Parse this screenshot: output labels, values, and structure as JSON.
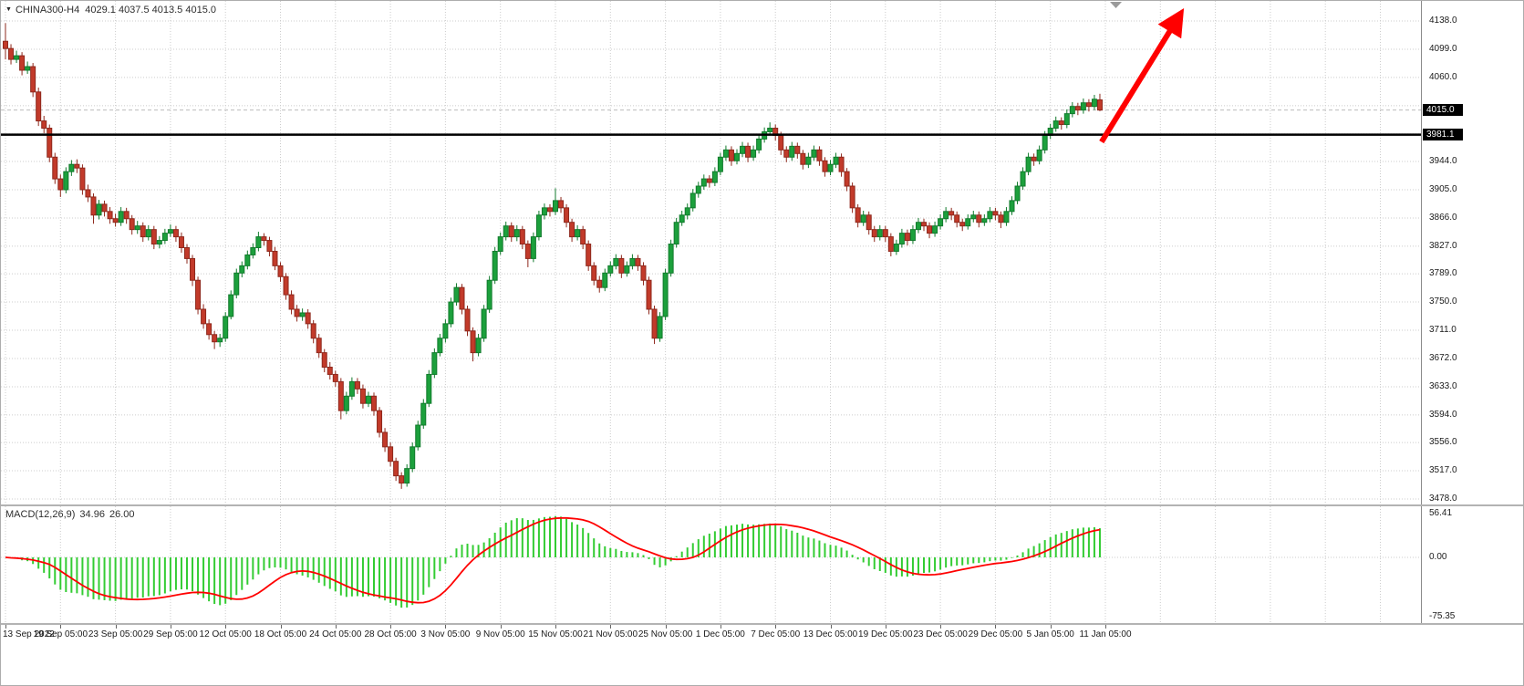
{
  "header": {
    "symbol_title": "CHINA300-H4",
    "ohlc": "4029.1 4037.5 4013.5 4015.0"
  },
  "icons": {
    "symbol_dropdown": "▼"
  },
  "colors": {
    "background": "#ffffff",
    "grid": "#cccccc",
    "up": "#1ca03c",
    "up_border": "#117a2c",
    "down": "#c23a2a",
    "down_border": "#8e281c",
    "histogram": "#33cc33",
    "signal": "#ff0000",
    "hline": "#000000",
    "bid_line": "#bdbdbd",
    "badge_bg": "#000000",
    "badge_text": "#ffffff",
    "arrow": "#ff0000",
    "axis_text": "#1a1a1a"
  },
  "chart_data": {
    "type": "candlestick",
    "title": "CHINA300-H4",
    "symbol": "CHINA300",
    "timeframe": "H4",
    "last_quote": {
      "open": 4029.1,
      "high": 4037.5,
      "low": 4013.5,
      "close": 4015.0
    },
    "price_axis": {
      "grid_values": [
        4138,
        4099,
        4060,
        4021,
        3982,
        3944,
        3905,
        3866,
        3827,
        3789,
        3750,
        3711,
        3672,
        3633,
        3594,
        3556,
        3517,
        3478
      ],
      "labels": [
        "4138.0",
        "4099.0",
        "4060.0",
        "3944.0",
        "3905.0",
        "3866.0",
        "3827.0",
        "3789.0",
        "3750.0",
        "3711.0",
        "3672.0",
        "3633.0",
        "3594.0",
        "3556.0",
        "3517.0",
        "3478.0"
      ],
      "current_badge": "4015.0",
      "current_price_value": 4015.0,
      "line_badge": "3981.1"
    },
    "time_axis": {
      "labels": [
        {
          "bar": 0,
          "text": "13 Sep 2022"
        },
        {
          "bar": 10,
          "text": "19 Sep 05:00"
        },
        {
          "bar": 20,
          "text": "23 Sep 05:00"
        },
        {
          "bar": 30,
          "text": "29 Sep 05:00"
        },
        {
          "bar": 40,
          "text": "12 Oct 05:00"
        },
        {
          "bar": 50,
          "text": "18 Oct 05:00"
        },
        {
          "bar": 60,
          "text": "24 Oct 05:00"
        },
        {
          "bar": 70,
          "text": "28 Oct 05:00"
        },
        {
          "bar": 80,
          "text": "3 Nov 05:00"
        },
        {
          "bar": 90,
          "text": "9 Nov 05:00"
        },
        {
          "bar": 100,
          "text": "15 Nov 05:00"
        },
        {
          "bar": 110,
          "text": "21 Nov 05:00"
        },
        {
          "bar": 120,
          "text": "25 Nov 05:00"
        },
        {
          "bar": 130,
          "text": "1 Dec 05:00"
        },
        {
          "bar": 140,
          "text": "7 Dec 05:00"
        },
        {
          "bar": 150,
          "text": "13 Dec 05:00"
        },
        {
          "bar": 160,
          "text": "19 Dec 05:00"
        },
        {
          "bar": 170,
          "text": "23 Dec 05:00"
        },
        {
          "bar": 180,
          "text": "29 Dec 05:00"
        },
        {
          "bar": 190,
          "text": "5 Jan 05:00"
        },
        {
          "bar": 200,
          "text": "11 Jan 05:00"
        }
      ]
    },
    "candles": [
      [
        4110,
        4135,
        4085,
        4100
      ],
      [
        4100,
        4106,
        4078,
        4085
      ],
      [
        4085,
        4097,
        4080,
        4090
      ],
      [
        4090,
        4095,
        4063,
        4070
      ],
      [
        4070,
        4082,
        4065,
        4075
      ],
      [
        4075,
        4080,
        4033,
        4040
      ],
      [
        4040,
        4046,
        3993,
        4000
      ],
      [
        4000,
        4007,
        3983,
        3990
      ],
      [
        3990,
        3995,
        3943,
        3950
      ],
      [
        3950,
        3956,
        3913,
        3920
      ],
      [
        3920,
        3926,
        3895,
        3905
      ],
      [
        3905,
        3936,
        3900,
        3930
      ],
      [
        3930,
        3946,
        3924,
        3940
      ],
      [
        3940,
        3947,
        3928,
        3935
      ],
      [
        3935,
        3940,
        3898,
        3905
      ],
      [
        3905,
        3912,
        3888,
        3895
      ],
      [
        3895,
        3900,
        3858,
        3870
      ],
      [
        3870,
        3891,
        3864,
        3885
      ],
      [
        3885,
        3890,
        3868,
        3875
      ],
      [
        3875,
        3881,
        3858,
        3865
      ],
      [
        3865,
        3872,
        3854,
        3860
      ],
      [
        3860,
        3881,
        3855,
        3875
      ],
      [
        3875,
        3880,
        3858,
        3865
      ],
      [
        3865,
        3870,
        3843,
        3850
      ],
      [
        3850,
        3862,
        3844,
        3855
      ],
      [
        3855,
        3860,
        3833,
        3840
      ],
      [
        3840,
        3856,
        3835,
        3850
      ],
      [
        3850,
        3855,
        3823,
        3830
      ],
      [
        3830,
        3841,
        3824,
        3835
      ],
      [
        3835,
        3851,
        3830,
        3845
      ],
      [
        3845,
        3857,
        3840,
        3850
      ],
      [
        3850,
        3855,
        3833,
        3840
      ],
      [
        3840,
        3846,
        3818,
        3825
      ],
      [
        3825,
        3830,
        3803,
        3810
      ],
      [
        3810,
        3815,
        3772,
        3780
      ],
      [
        3780,
        3785,
        3733,
        3740
      ],
      [
        3740,
        3747,
        3713,
        3720
      ],
      [
        3720,
        3726,
        3698,
        3705
      ],
      [
        3705,
        3710,
        3685,
        3695
      ],
      [
        3695,
        3706,
        3688,
        3700
      ],
      [
        3700,
        3736,
        3695,
        3730
      ],
      [
        3730,
        3766,
        3726,
        3760
      ],
      [
        3760,
        3796,
        3755,
        3790
      ],
      [
        3790,
        3806,
        3784,
        3800
      ],
      [
        3800,
        3821,
        3795,
        3815
      ],
      [
        3815,
        3831,
        3810,
        3825
      ],
      [
        3825,
        3847,
        3820,
        3840
      ],
      [
        3840,
        3845,
        3828,
        3835
      ],
      [
        3835,
        3840,
        3813,
        3820
      ],
      [
        3820,
        3826,
        3794,
        3800
      ],
      [
        3800,
        3805,
        3778,
        3785
      ],
      [
        3785,
        3790,
        3753,
        3760
      ],
      [
        3760,
        3766,
        3733,
        3740
      ],
      [
        3740,
        3746,
        3723,
        3730
      ],
      [
        3730,
        3741,
        3724,
        3735
      ],
      [
        3735,
        3740,
        3713,
        3720
      ],
      [
        3720,
        3725,
        3693,
        3700
      ],
      [
        3700,
        3706,
        3673,
        3680
      ],
      [
        3680,
        3685,
        3653,
        3660
      ],
      [
        3660,
        3667,
        3643,
        3650
      ],
      [
        3650,
        3655,
        3633,
        3640
      ],
      [
        3640,
        3645,
        3588,
        3600
      ],
      [
        3600,
        3626,
        3595,
        3620
      ],
      [
        3620,
        3646,
        3615,
        3640
      ],
      [
        3640,
        3645,
        3623,
        3630
      ],
      [
        3630,
        3636,
        3603,
        3610
      ],
      [
        3610,
        3626,
        3605,
        3620
      ],
      [
        3620,
        3625,
        3593,
        3600
      ],
      [
        3600,
        3605,
        3563,
        3570
      ],
      [
        3570,
        3576,
        3543,
        3550
      ],
      [
        3550,
        3556,
        3523,
        3530
      ],
      [
        3530,
        3535,
        3503,
        3510
      ],
      [
        3510,
        3515,
        3492,
        3500
      ],
      [
        3500,
        3526,
        3495,
        3520
      ],
      [
        3520,
        3556,
        3515,
        3550
      ],
      [
        3550,
        3586,
        3545,
        3580
      ],
      [
        3580,
        3616,
        3575,
        3610
      ],
      [
        3610,
        3656,
        3605,
        3650
      ],
      [
        3650,
        3686,
        3645,
        3680
      ],
      [
        3680,
        3706,
        3675,
        3700
      ],
      [
        3700,
        3726,
        3694,
        3720
      ],
      [
        3720,
        3756,
        3715,
        3750
      ],
      [
        3750,
        3776,
        3745,
        3770
      ],
      [
        3770,
        3775,
        3733,
        3740
      ],
      [
        3740,
        3745,
        3703,
        3710
      ],
      [
        3710,
        3715,
        3668,
        3680
      ],
      [
        3680,
        3706,
        3675,
        3700
      ],
      [
        3700,
        3746,
        3695,
        3740
      ],
      [
        3740,
        3786,
        3735,
        3780
      ],
      [
        3780,
        3826,
        3775,
        3820
      ],
      [
        3820,
        3846,
        3815,
        3840
      ],
      [
        3840,
        3861,
        3835,
        3855
      ],
      [
        3855,
        3860,
        3833,
        3840
      ],
      [
        3840,
        3856,
        3834,
        3850
      ],
      [
        3850,
        3855,
        3823,
        3830
      ],
      [
        3830,
        3835,
        3798,
        3810
      ],
      [
        3810,
        3846,
        3805,
        3840
      ],
      [
        3840,
        3876,
        3835,
        3870
      ],
      [
        3870,
        3886,
        3864,
        3880
      ],
      [
        3880,
        3885,
        3868,
        3875
      ],
      [
        3875,
        3907,
        3870,
        3890
      ],
      [
        3890,
        3895,
        3873,
        3880
      ],
      [
        3880,
        3885,
        3853,
        3860
      ],
      [
        3860,
        3865,
        3833,
        3840
      ],
      [
        3840,
        3856,
        3835,
        3850
      ],
      [
        3850,
        3855,
        3823,
        3830
      ],
      [
        3830,
        3835,
        3793,
        3800
      ],
      [
        3800,
        3805,
        3773,
        3780
      ],
      [
        3780,
        3786,
        3763,
        3770
      ],
      [
        3770,
        3796,
        3765,
        3790
      ],
      [
        3790,
        3806,
        3785,
        3800
      ],
      [
        3800,
        3816,
        3795,
        3810
      ],
      [
        3810,
        3815,
        3783,
        3790
      ],
      [
        3790,
        3806,
        3785,
        3800
      ],
      [
        3800,
        3816,
        3795,
        3810
      ],
      [
        3810,
        3815,
        3793,
        3800
      ],
      [
        3800,
        3805,
        3773,
        3780
      ],
      [
        3780,
        3785,
        3733,
        3740
      ],
      [
        3740,
        3745,
        3692,
        3700
      ],
      [
        3700,
        3736,
        3695,
        3730
      ],
      [
        3730,
        3796,
        3725,
        3790
      ],
      [
        3790,
        3836,
        3785,
        3830
      ],
      [
        3830,
        3866,
        3825,
        3860
      ],
      [
        3860,
        3876,
        3855,
        3870
      ],
      [
        3870,
        3886,
        3864,
        3880
      ],
      [
        3880,
        3906,
        3875,
        3900
      ],
      [
        3900,
        3916,
        3894,
        3910
      ],
      [
        3910,
        3926,
        3905,
        3920
      ],
      [
        3920,
        3925,
        3908,
        3915
      ],
      [
        3915,
        3936,
        3910,
        3930
      ],
      [
        3930,
        3956,
        3925,
        3950
      ],
      [
        3950,
        3966,
        3945,
        3960
      ],
      [
        3960,
        3965,
        3938,
        3945
      ],
      [
        3945,
        3961,
        3940,
        3955
      ],
      [
        3955,
        3971,
        3950,
        3965
      ],
      [
        3965,
        3970,
        3943,
        3950
      ],
      [
        3950,
        3966,
        3945,
        3960
      ],
      [
        3960,
        3981,
        3955,
        3975
      ],
      [
        3975,
        3991,
        3970,
        3985
      ],
      [
        3985,
        3998,
        3980,
        3990
      ],
      [
        3990,
        3995,
        3973,
        3980
      ],
      [
        3980,
        3985,
        3953,
        3960
      ],
      [
        3960,
        3965,
        3943,
        3950
      ],
      [
        3950,
        3971,
        3945,
        3965
      ],
      [
        3965,
        3970,
        3948,
        3955
      ],
      [
        3955,
        3960,
        3933,
        3940
      ],
      [
        3940,
        3956,
        3935,
        3950
      ],
      [
        3950,
        3966,
        3945,
        3960
      ],
      [
        3960,
        3965,
        3938,
        3945
      ],
      [
        3945,
        3950,
        3923,
        3930
      ],
      [
        3930,
        3946,
        3925,
        3940
      ],
      [
        3940,
        3956,
        3935,
        3950
      ],
      [
        3950,
        3955,
        3923,
        3930
      ],
      [
        3930,
        3935,
        3903,
        3910
      ],
      [
        3910,
        3915,
        3873,
        3880
      ],
      [
        3880,
        3885,
        3853,
        3860
      ],
      [
        3860,
        3876,
        3855,
        3870
      ],
      [
        3870,
        3875,
        3843,
        3850
      ],
      [
        3850,
        3855,
        3833,
        3840
      ],
      [
        3840,
        3856,
        3835,
        3850
      ],
      [
        3850,
        3855,
        3833,
        3840
      ],
      [
        3840,
        3845,
        3813,
        3820
      ],
      [
        3820,
        3836,
        3815,
        3830
      ],
      [
        3830,
        3851,
        3825,
        3845
      ],
      [
        3845,
        3850,
        3828,
        3835
      ],
      [
        3835,
        3856,
        3830,
        3850
      ],
      [
        3850,
        3866,
        3845,
        3860
      ],
      [
        3860,
        3865,
        3848,
        3855
      ],
      [
        3855,
        3860,
        3838,
        3845
      ],
      [
        3845,
        3861,
        3840,
        3855
      ],
      [
        3855,
        3871,
        3850,
        3865
      ],
      [
        3865,
        3881,
        3860,
        3875
      ],
      [
        3875,
        3880,
        3863,
        3870
      ],
      [
        3870,
        3875,
        3853,
        3860
      ],
      [
        3860,
        3865,
        3848,
        3855
      ],
      [
        3855,
        3871,
        3850,
        3865
      ],
      [
        3865,
        3876,
        3860,
        3870
      ],
      [
        3870,
        3875,
        3853,
        3860
      ],
      [
        3860,
        3871,
        3855,
        3865
      ],
      [
        3865,
        3881,
        3860,
        3875
      ],
      [
        3875,
        3880,
        3863,
        3870
      ],
      [
        3870,
        3875,
        3852,
        3860
      ],
      [
        3860,
        3881,
        3855,
        3875
      ],
      [
        3875,
        3896,
        3870,
        3890
      ],
      [
        3890,
        3916,
        3885,
        3910
      ],
      [
        3910,
        3936,
        3905,
        3930
      ],
      [
        3930,
        3956,
        3925,
        3950
      ],
      [
        3950,
        3955,
        3938,
        3945
      ],
      [
        3945,
        3966,
        3940,
        3960
      ],
      [
        3960,
        3986,
        3955,
        3980
      ],
      [
        3980,
        3996,
        3975,
        3990
      ],
      [
        3990,
        4006,
        3985,
        4000
      ],
      [
        4000,
        4005,
        3988,
        3995
      ],
      [
        3995,
        4016,
        3990,
        4010
      ],
      [
        4010,
        4026,
        4005,
        4020
      ],
      [
        4020,
        4025,
        4008,
        4015
      ],
      [
        4015,
        4031,
        4010,
        4025
      ],
      [
        4025,
        4030,
        4013,
        4020
      ],
      [
        4020,
        4036,
        4015,
        4030
      ],
      [
        4029.1,
        4037.5,
        4013.5,
        4015.0
      ]
    ],
    "indicator": {
      "label": "MACD(12,26,9)",
      "value_main": "34.96",
      "value_signal": "26.00",
      "axis_labels": [
        "56.41",
        "0.00",
        "-75.35"
      ],
      "axis_values": [
        56.41,
        0,
        -75.35
      ]
    },
    "annotations": {
      "hline_value": 3981.1,
      "trend_arrow": {
        "from_bar": 199.3,
        "from_price": 3971,
        "to_bar": 213.5,
        "to_price": 4146,
        "color": "#ff0000"
      }
    }
  }
}
